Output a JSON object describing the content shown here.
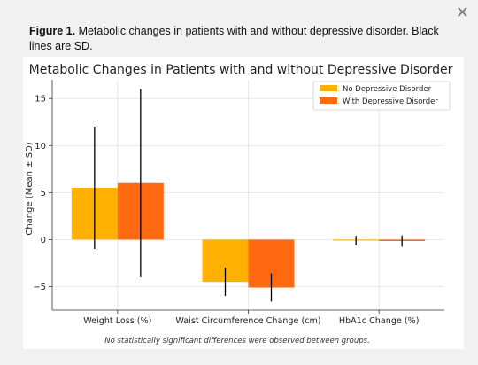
{
  "ui": {
    "close_glyph": "✕",
    "caption_label": "Figure 1.",
    "caption_text": " Metabolic changes in patients with and without depressive disorder. Black lines are SD."
  },
  "chart_data": {
    "type": "bar",
    "title": "Metabolic Changes in Patients with and without Depressive Disorder",
    "xlabel": "",
    "ylabel": "Change (Mean ± SD)",
    "ylim": [
      -7.5,
      17
    ],
    "yticks": [
      -5,
      0,
      5,
      10,
      15
    ],
    "grid": true,
    "legend_position": "top-right",
    "categories": [
      "Weight Loss (%)",
      "Waist Circumference Change (cm)",
      "HbA1c Change (%)"
    ],
    "series": [
      {
        "name": "No Depressive Disorder",
        "color": "#ffb000",
        "values": [
          5.5,
          -4.5,
          -0.1
        ],
        "sd": [
          6.5,
          1.5,
          0.5
        ]
      },
      {
        "name": "With Depressive Disorder",
        "color": "#ff6a10",
        "values": [
          6.0,
          -5.1,
          -0.15
        ],
        "sd": [
          10.0,
          1.5,
          0.6
        ]
      }
    ],
    "annotation": "No statistically significant differences were observed between groups."
  }
}
